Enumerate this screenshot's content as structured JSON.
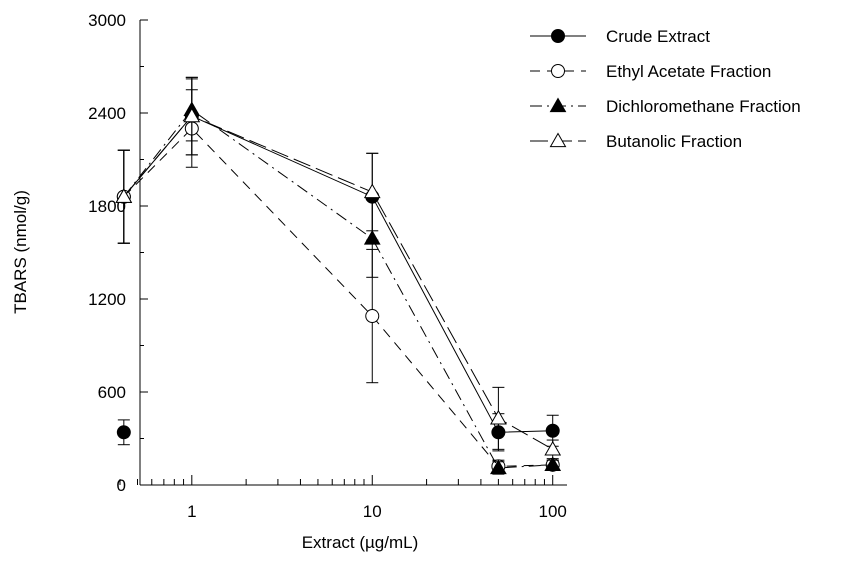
{
  "chart_data": {
    "type": "line",
    "title": "",
    "xlabel": "Extract (µg/mL)",
    "ylabel": "TBARS (nmol/g)",
    "x_scale": "log",
    "xlim": [
      0.4,
      120
    ],
    "ylim": [
      0,
      3000
    ],
    "x_ticks": [
      1,
      10,
      100
    ],
    "x_tick_labels": [
      "1",
      "10",
      "100"
    ],
    "y_ticks": [
      0,
      600,
      1200,
      1800,
      2400,
      3000
    ],
    "y_tick_labels": [
      "0",
      "600",
      "1200",
      "1800",
      "2400",
      "3000"
    ],
    "grid": false,
    "legend_position": "top-right",
    "baseline_points": [
      {
        "x": 0.42,
        "y": 340,
        "err": 80,
        "marker": "filled-circle"
      }
    ],
    "series": [
      {
        "name": "Crude Extract",
        "marker": "filled-circle",
        "line_style": "solid",
        "color": "#000000",
        "x": [
          0.42,
          1,
          10,
          50,
          100
        ],
        "y": [
          1860,
          2380,
          1860,
          340,
          350
        ],
        "err": [
          300,
          250,
          280,
          120,
          100
        ]
      },
      {
        "name": "Ethyl Acetate Fraction",
        "marker": "open-circle",
        "line_style": "dashed",
        "color": "#000000",
        "x": [
          0.42,
          1,
          10,
          50,
          100
        ],
        "y": [
          1860,
          2300,
          1090,
          120,
          130
        ],
        "err": [
          300,
          250,
          430,
          40,
          30
        ]
      },
      {
        "name": "Dichloromethane Fraction",
        "marker": "filled-triangle",
        "line_style": "dashdot",
        "color": "#000000",
        "x": [
          0.42,
          1,
          10,
          50,
          100
        ],
        "y": [
          1860,
          2420,
          1590,
          110,
          130
        ],
        "err": [
          300,
          200,
          250,
          40,
          30
        ]
      },
      {
        "name": "Butanolic Fraction",
        "marker": "open-triangle",
        "line_style": "longdash",
        "color": "#000000",
        "x": [
          0.42,
          1,
          10,
          50,
          100
        ],
        "y": [
          1860,
          2380,
          1890,
          430,
          230
        ],
        "err": [
          300,
          250,
          250,
          200,
          60
        ]
      }
    ]
  }
}
